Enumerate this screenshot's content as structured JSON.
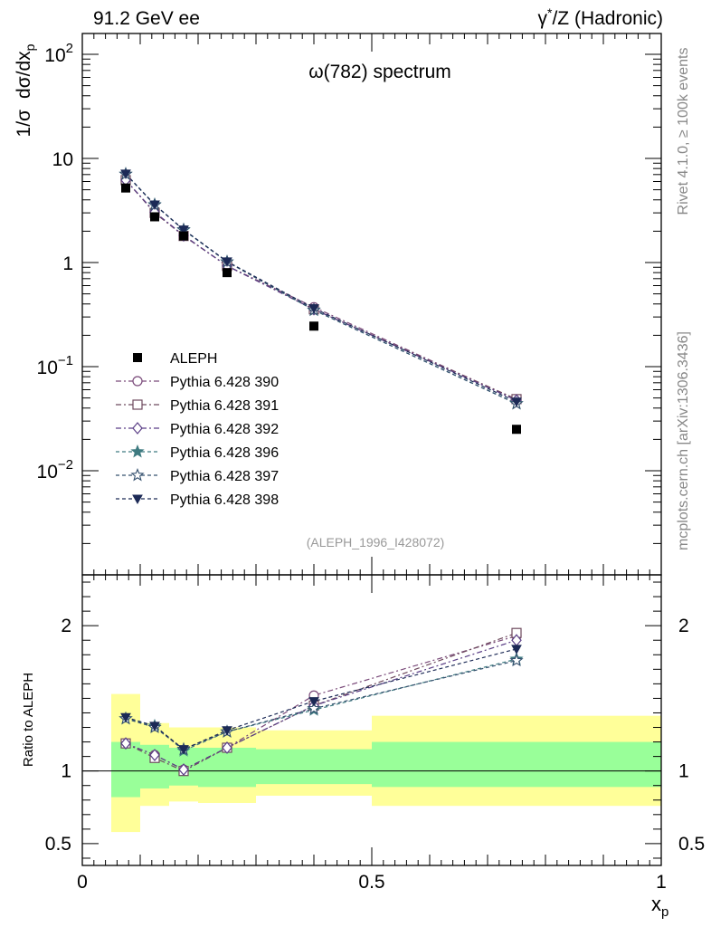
{
  "header": {
    "left": "91.2 GeV ee",
    "right_prefix": "γ",
    "right_sup": "*",
    "right_suffix": "/Z (Hadronic)"
  },
  "side_text": {
    "rivet": "Rivet 4.1.0, ≥ 100k events",
    "mcplots": "mcplots.cern.ch [arXiv:1306.3436]"
  },
  "chart_data": {
    "type": "scatter",
    "title": "ω(782) spectrum",
    "analysis_tag": "(ALEPH_1996_I428072)",
    "ylabel_main": {
      "a": "1/σ",
      "b": "dσ/dx",
      "sub": "p"
    },
    "ylabel_ratio": "Ratio to ALEPH",
    "xlabel": {
      "base": "x",
      "sub": "p"
    },
    "xlim": [
      0,
      1
    ],
    "ylim_main_log10": [
      -3,
      2.2
    ],
    "ylim_ratio": [
      0.35,
      2.35
    ],
    "x_ticks": [
      {
        "v": 0,
        "label": "0"
      },
      {
        "v": 0.5,
        "label": "0.5"
      },
      {
        "v": 1,
        "label": "1"
      }
    ],
    "y_ticks_main": [
      {
        "exp": 2,
        "label": "10",
        "sup": "2"
      },
      {
        "exp": 1,
        "label": "10",
        "sup": ""
      },
      {
        "exp": 0,
        "label": "1",
        "sup": ""
      },
      {
        "exp": -1,
        "label": "10",
        "sup": "−1"
      },
      {
        "exp": -2,
        "label": "10",
        "sup": "−2"
      }
    ],
    "y_ticks_ratio": [
      {
        "v": 0.5,
        "label": "0.5"
      },
      {
        "v": 1,
        "label": "1"
      },
      {
        "v": 2,
        "label": "2"
      }
    ],
    "x": [
      0.075,
      0.125,
      0.175,
      0.25,
      0.4,
      0.75
    ],
    "bins": [
      [
        0.05,
        0.1
      ],
      [
        0.1,
        0.15
      ],
      [
        0.15,
        0.2
      ],
      [
        0.2,
        0.3
      ],
      [
        0.3,
        0.5
      ],
      [
        0.5,
        1.0
      ]
    ],
    "data": {
      "name": "ALEPH",
      "values": [
        5.2,
        2.75,
        1.8,
        0.8,
        0.245,
        0.025
      ],
      "band_inner": [
        [
          0.82,
          1.2
        ],
        [
          0.88,
          1.18
        ],
        [
          0.9,
          1.16
        ],
        [
          0.89,
          1.16
        ],
        [
          0.91,
          1.15
        ],
        [
          0.89,
          1.2
        ]
      ],
      "band_outer": [
        [
          0.58,
          1.53
        ],
        [
          0.76,
          1.33
        ],
        [
          0.79,
          1.3
        ],
        [
          0.78,
          1.3
        ],
        [
          0.83,
          1.28
        ],
        [
          0.76,
          1.38
        ]
      ]
    },
    "series": [
      {
        "name": "Pythia 6.428 390",
        "color": "#7a4a7a",
        "marker": "circle-open",
        "dash": "6 3 2 3",
        "ratio": [
          1.19,
          1.11,
          1.01,
          1.16,
          1.52,
          1.93
        ]
      },
      {
        "name": "Pythia 6.428 391",
        "color": "#6e4a5e",
        "marker": "square-open",
        "dash": "6 3 2 3",
        "ratio": [
          1.19,
          1.09,
          1.0,
          1.16,
          1.45,
          1.95
        ]
      },
      {
        "name": "Pythia 6.428 392",
        "color": "#5a3e86",
        "marker": "diamond-open",
        "dash": "6 3 2 3",
        "ratio": [
          1.19,
          1.11,
          1.01,
          1.16,
          1.45,
          1.9
        ]
      },
      {
        "name": "Pythia 6.428 396",
        "color": "#3e7a80",
        "marker": "star-filled",
        "dash": "4 3",
        "ratio": [
          1.36,
          1.31,
          1.14,
          1.27,
          1.42,
          1.77
        ]
      },
      {
        "name": "Pythia 6.428 397",
        "color": "#34506e",
        "marker": "star-open",
        "dash": "4 3",
        "ratio": [
          1.36,
          1.3,
          1.15,
          1.27,
          1.43,
          1.76
        ]
      },
      {
        "name": "Pythia 6.428 398",
        "color": "#1c2a56",
        "marker": "triangle-down-filled",
        "dash": "4 3",
        "ratio": [
          1.37,
          1.31,
          1.15,
          1.28,
          1.48,
          1.84
        ]
      }
    ],
    "colors": {
      "band_inner": "#99ff99",
      "band_outer": "#ffff99",
      "data": "#000000"
    }
  }
}
